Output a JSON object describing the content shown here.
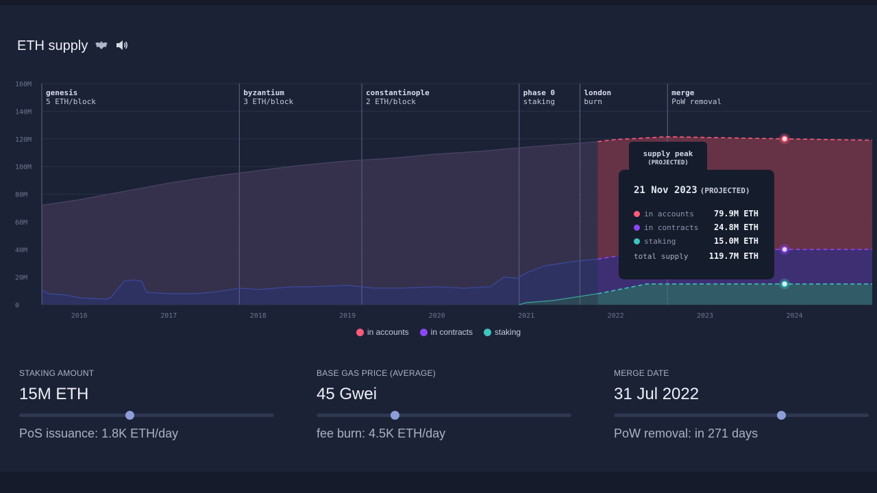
{
  "header": {
    "title": "ETH supply",
    "icon_a": "bat-icon",
    "icon_b": "speaker-icon"
  },
  "chart_data": {
    "type": "area",
    "title": "ETH supply",
    "ylim": [
      0,
      160
    ],
    "y_ticks": [
      0,
      20,
      40,
      60,
      80,
      100,
      120,
      140,
      160
    ],
    "y_tick_labels": [
      "0",
      "20M",
      "40M",
      "60M",
      "80M",
      "100M",
      "120M",
      "140M",
      "160M"
    ],
    "xlim": [
      2015.58,
      2024.87
    ],
    "x_ticks": [
      2016,
      2017,
      2018,
      2019,
      2020,
      2021,
      2022,
      2023,
      2024
    ],
    "projection_start": 2021.8,
    "events": [
      {
        "x": 2015.58,
        "name": "genesis",
        "sub": "5 ETH/block"
      },
      {
        "x": 2017.79,
        "name": "byzantium",
        "sub": "3 ETH/block"
      },
      {
        "x": 2019.16,
        "name": "constantinople",
        "sub": "2 ETH/block"
      },
      {
        "x": 2020.92,
        "name": "phase 0",
        "sub": "staking"
      },
      {
        "x": 2021.6,
        "name": "london",
        "sub": "burn"
      },
      {
        "x": 2022.58,
        "name": "merge",
        "sub": "PoW removal"
      }
    ],
    "series": [
      {
        "name": "in accounts",
        "color": "#ff5a7a",
        "historical": [
          [
            2015.58,
            72
          ],
          [
            2016,
            76
          ],
          [
            2016.5,
            82
          ],
          [
            2017,
            88
          ],
          [
            2017.5,
            93
          ],
          [
            2018,
            97
          ],
          [
            2018.5,
            101
          ],
          [
            2019,
            104
          ],
          [
            2019.5,
            106
          ],
          [
            2020,
            109
          ],
          [
            2020.5,
            111
          ],
          [
            2021,
            114
          ],
          [
            2021.5,
            116.5
          ],
          [
            2021.8,
            118
          ]
        ],
        "projected": [
          [
            2021.8,
            118
          ],
          [
            2022,
            119.5
          ],
          [
            2022.58,
            121.5
          ],
          [
            2023,
            121
          ],
          [
            2023.9,
            120
          ],
          [
            2024.87,
            119
          ]
        ]
      },
      {
        "name": "in contracts",
        "color": "#8b47f5",
        "historical": [
          [
            2015.58,
            11
          ],
          [
            2015.65,
            8
          ],
          [
            2015.85,
            7
          ],
          [
            2016,
            5
          ],
          [
            2016.3,
            4
          ],
          [
            2016.35,
            5
          ],
          [
            2016.5,
            17
          ],
          [
            2016.6,
            18
          ],
          [
            2016.7,
            17
          ],
          [
            2016.75,
            9
          ],
          [
            2017,
            8
          ],
          [
            2017.3,
            8
          ],
          [
            2017.5,
            9
          ],
          [
            2017.8,
            12
          ],
          [
            2018,
            11
          ],
          [
            2018.2,
            12
          ],
          [
            2018.4,
            13
          ],
          [
            2018.6,
            13
          ],
          [
            2019,
            14
          ],
          [
            2019.3,
            12
          ],
          [
            2019.6,
            12
          ],
          [
            2020,
            13
          ],
          [
            2020.3,
            12
          ],
          [
            2020.6,
            13
          ],
          [
            2020.75,
            20
          ],
          [
            2020.9,
            19
          ],
          [
            2021,
            23
          ],
          [
            2021.2,
            28
          ],
          [
            2021.5,
            31
          ],
          [
            2021.8,
            33
          ]
        ],
        "projected": [
          [
            2021.8,
            33
          ],
          [
            2022,
            35
          ],
          [
            2022.58,
            39.5
          ],
          [
            2023,
            40
          ],
          [
            2023.9,
            40
          ],
          [
            2024.87,
            40
          ]
        ]
      },
      {
        "name": "staking",
        "color": "#3fc4be",
        "historical": [
          [
            2020.92,
            0
          ],
          [
            2021,
            1.5
          ],
          [
            2021.3,
            3
          ],
          [
            2021.6,
            6
          ],
          [
            2021.8,
            8
          ]
        ],
        "projected": [
          [
            2021.8,
            8
          ],
          [
            2022,
            10.5
          ],
          [
            2022.35,
            15
          ],
          [
            2022.58,
            15
          ],
          [
            2023.9,
            15
          ],
          [
            2024.87,
            15
          ]
        ]
      }
    ],
    "highlight": {
      "x": 2023.89,
      "accounts_total": 120,
      "contracts_total": 40,
      "staking": 15
    }
  },
  "callout": {
    "line1": "supply peak",
    "line2": "(PROJECTED)"
  },
  "tooltip": {
    "date": "21 Nov 2023",
    "projected": "(PROJECTED)",
    "rows": [
      {
        "label": "in accounts",
        "value": "79.9M ETH",
        "color": "#ff5a7a"
      },
      {
        "label": "in contracts",
        "value": "24.8M ETH",
        "color": "#8b47f5"
      },
      {
        "label": "staking",
        "value": "15.0M ETH",
        "color": "#3fc4be"
      }
    ],
    "total_label": "total supply",
    "total_value": "119.7M ETH"
  },
  "legend": [
    {
      "label": "in accounts",
      "color": "#ff5a7a"
    },
    {
      "label": "in contracts",
      "color": "#8b47f5"
    },
    {
      "label": "staking",
      "color": "#3fc4be"
    }
  ],
  "controls": [
    {
      "label": "STAKING AMOUNT",
      "value": "15M ETH",
      "slider": 0.433,
      "sub": "PoS issuance: 1.8K ETH/day"
    },
    {
      "label": "BASE GAS PRICE (AVERAGE)",
      "value": "45 Gwei",
      "slider": 0.306,
      "sub": "fee burn: 4.5K ETH/day"
    },
    {
      "label": "MERGE DATE",
      "value": "31 Jul 2022",
      "slider": 0.655,
      "sub": "PoW removal: in 271 days"
    }
  ]
}
